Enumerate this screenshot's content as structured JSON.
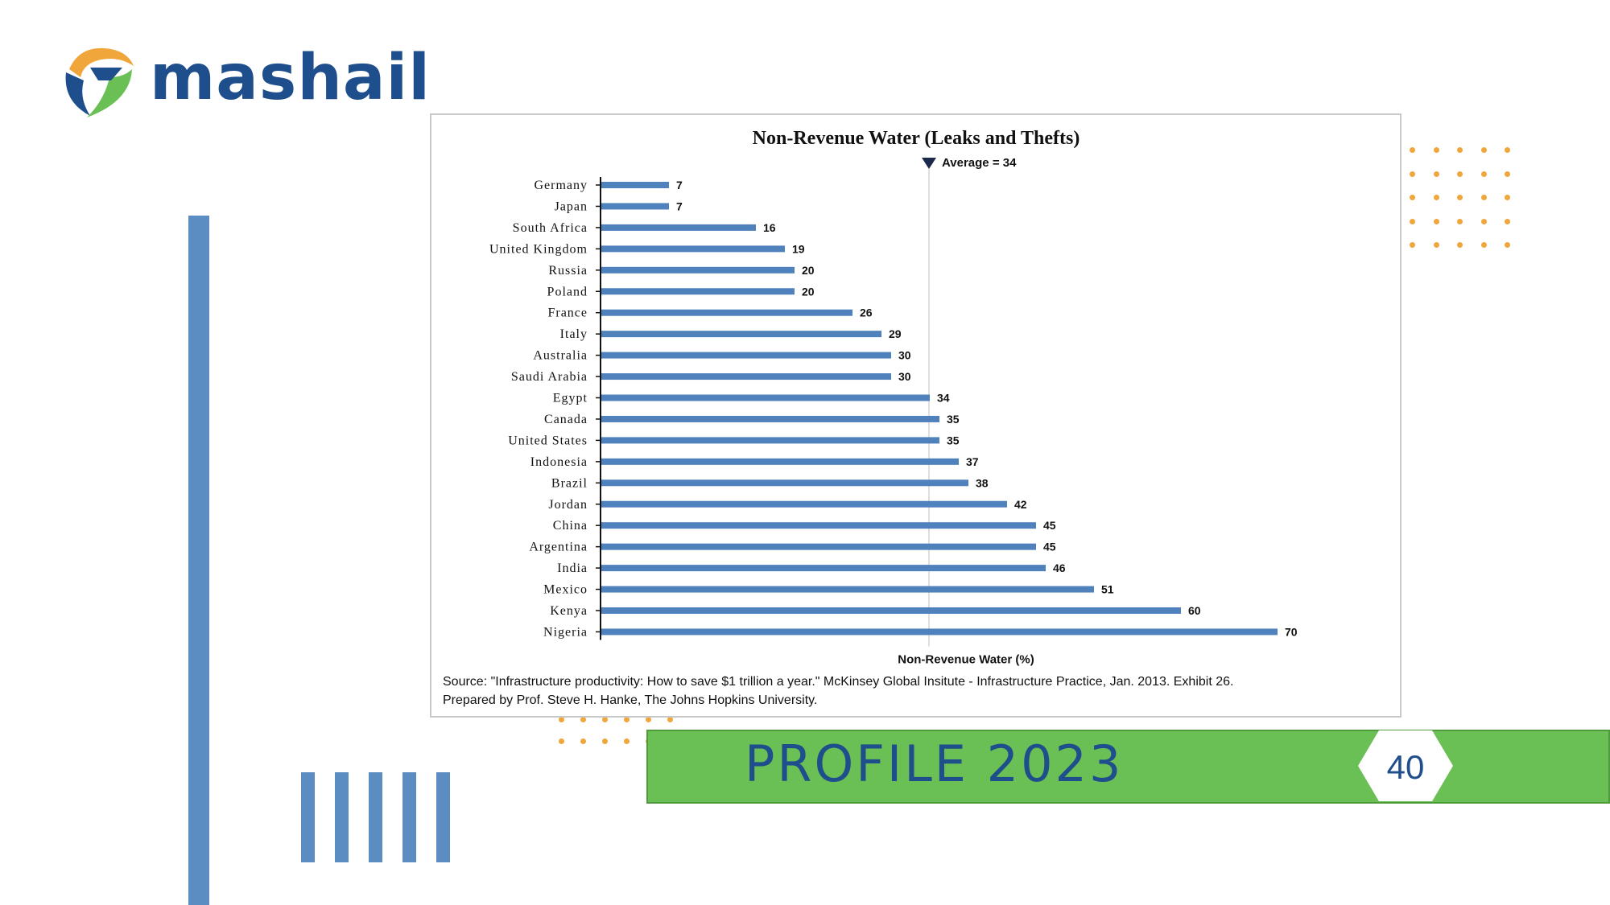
{
  "brand": {
    "name": "mashail",
    "color_primary": "#1f4e8c",
    "color_accent": "#f0a63a",
    "color_green": "#6abf55",
    "color_bar": "#5b8cc2"
  },
  "footer": {
    "profile_label": "PROFILE 2023",
    "page_number": "40"
  },
  "chart_data": {
    "type": "bar",
    "orientation": "horizontal",
    "title": "Non-Revenue Water (Leaks and Thefts)",
    "xlabel": "Non-Revenue Water (%)",
    "ylabel": "",
    "categories": [
      "Germany",
      "Japan",
      "South Africa",
      "United Kingdom",
      "Russia",
      "Poland",
      "France",
      "Italy",
      "Australia",
      "Saudi Arabia",
      "Egypt",
      "Canada",
      "United States",
      "Indonesia",
      "Brazil",
      "Jordan",
      "China",
      "Argentina",
      "India",
      "Mexico",
      "Kenya",
      "Nigeria"
    ],
    "values": [
      7,
      7,
      16,
      19,
      20,
      20,
      26,
      29,
      30,
      30,
      34,
      35,
      35,
      37,
      38,
      42,
      45,
      45,
      46,
      51,
      60,
      70
    ],
    "xlim": [
      0,
      72
    ],
    "average": {
      "value": 34,
      "label": "Average = 34"
    },
    "bar_color": "#4f81bd",
    "grid": false,
    "source_lines": [
      "Source: \"Infrastructure productivity: How to save $1 trillion a year.\" McKinsey Global Insitute - Infrastructure Practice, Jan. 2013. Exhibit 26.",
      "Prepared by Prof. Steve H. Hanke, The Johns Hopkins University."
    ]
  }
}
